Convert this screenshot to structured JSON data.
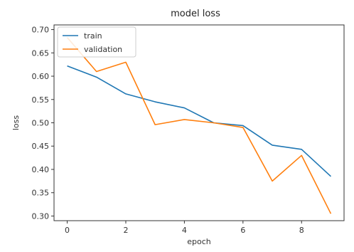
{
  "chart_data": {
    "type": "line",
    "title": "model loss",
    "xlabel": "epoch",
    "ylabel": "loss",
    "x": [
      0,
      1,
      2,
      3,
      4,
      5,
      6,
      7,
      8,
      9
    ],
    "xlim": [
      -0.45,
      9.45
    ],
    "ylim": [
      0.29,
      0.71
    ],
    "xticks": [
      0,
      2,
      4,
      6,
      8
    ],
    "yticks": [
      0.3,
      0.35,
      0.4,
      0.45,
      0.5,
      0.55,
      0.6,
      0.65,
      0.7
    ],
    "ytick_labels": [
      "0.30",
      "0.35",
      "0.40",
      "0.45",
      "0.50",
      "0.55",
      "0.60",
      "0.65",
      "0.70"
    ],
    "grid": false,
    "legend_position": "upper-left",
    "series": [
      {
        "name": "train",
        "color": "#1f77b4",
        "values": [
          0.622,
          0.598,
          0.562,
          0.545,
          0.532,
          0.5,
          0.494,
          0.452,
          0.443,
          0.385
        ]
      },
      {
        "name": "validation",
        "color": "#ff7f0e",
        "values": [
          0.683,
          0.61,
          0.63,
          0.496,
          0.507,
          0.5,
          0.49,
          0.375,
          0.43,
          0.305
        ]
      }
    ]
  }
}
